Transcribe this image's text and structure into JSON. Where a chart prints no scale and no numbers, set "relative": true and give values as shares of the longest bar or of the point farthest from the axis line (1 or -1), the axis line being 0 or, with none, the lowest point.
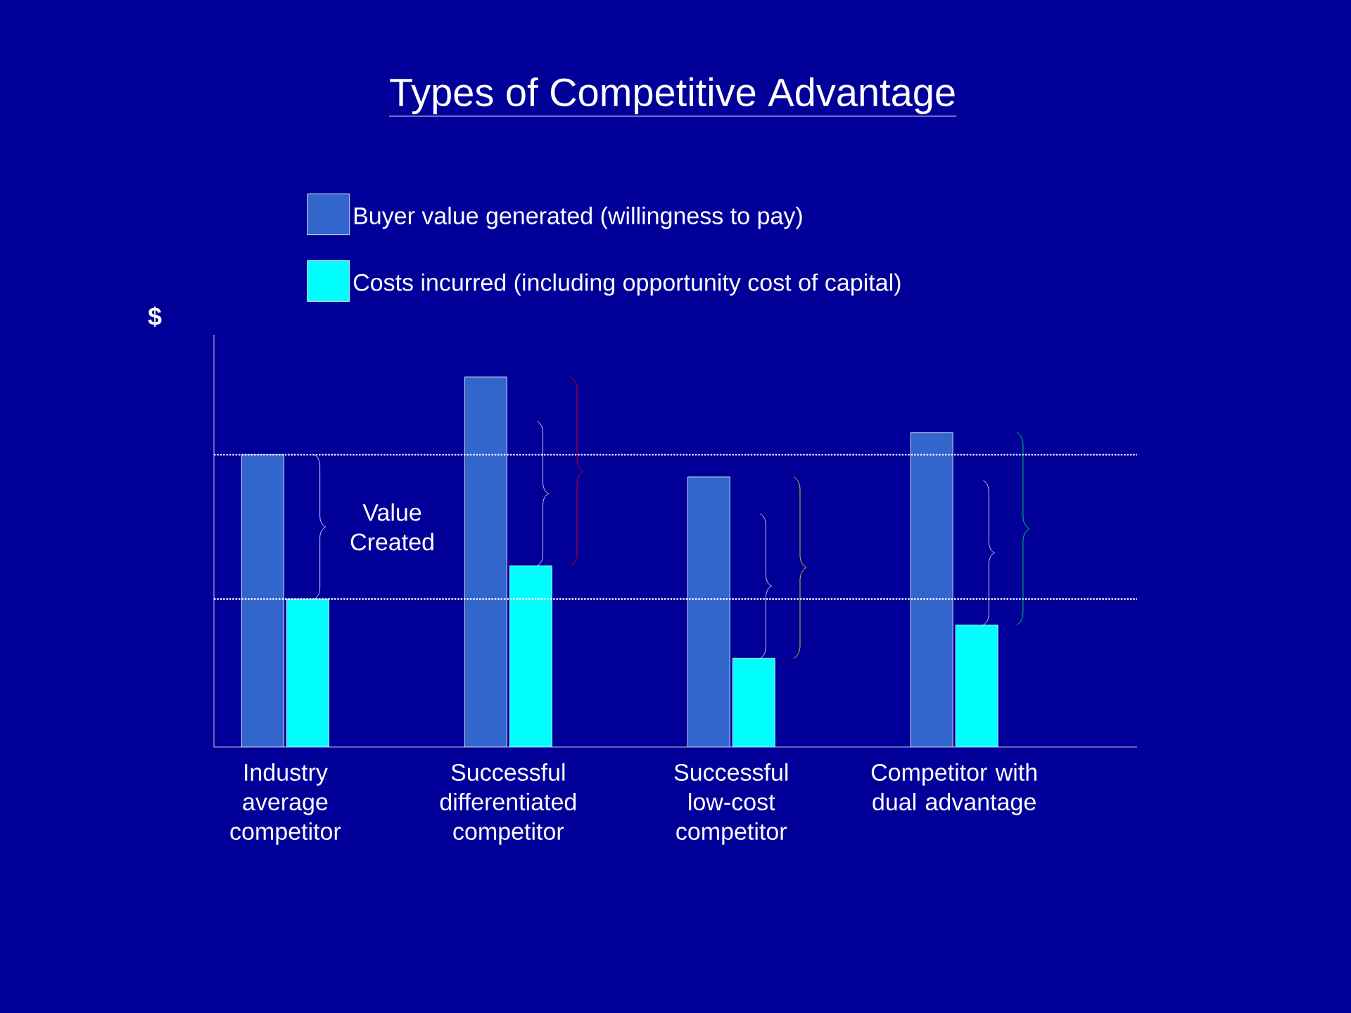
{
  "chart_data": {
    "type": "bar",
    "title": "Types of Competitive Advantage",
    "ylabel": "$",
    "relative": true,
    "categories": [
      "Industry average competitor",
      "Successful differentiated competitor",
      "Successful low-cost competitor",
      "Competitor with dual advantage"
    ],
    "series": [
      {
        "name": "Buyer value generated (willingness to pay)",
        "color": "#3366cc",
        "values": [
          0.79,
          1,
          0.73,
          0.85
        ]
      },
      {
        "name": "Costs incurred (including opportunity cost of capital)",
        "color": "#00ffff",
        "values": [
          0.4,
          0.49,
          0.24,
          0.33
        ]
      }
    ],
    "ref_lines": [
      {
        "axis": "y",
        "value": 0.79,
        "color": "#ffffff",
        "line_style": "dotted"
      },
      {
        "axis": "y",
        "value": 0.4,
        "color": "#ffffff",
        "line_style": "dotted"
      }
    ],
    "annotations": [
      "Value Created"
    ],
    "legend": "top",
    "grid": false
  }
}
